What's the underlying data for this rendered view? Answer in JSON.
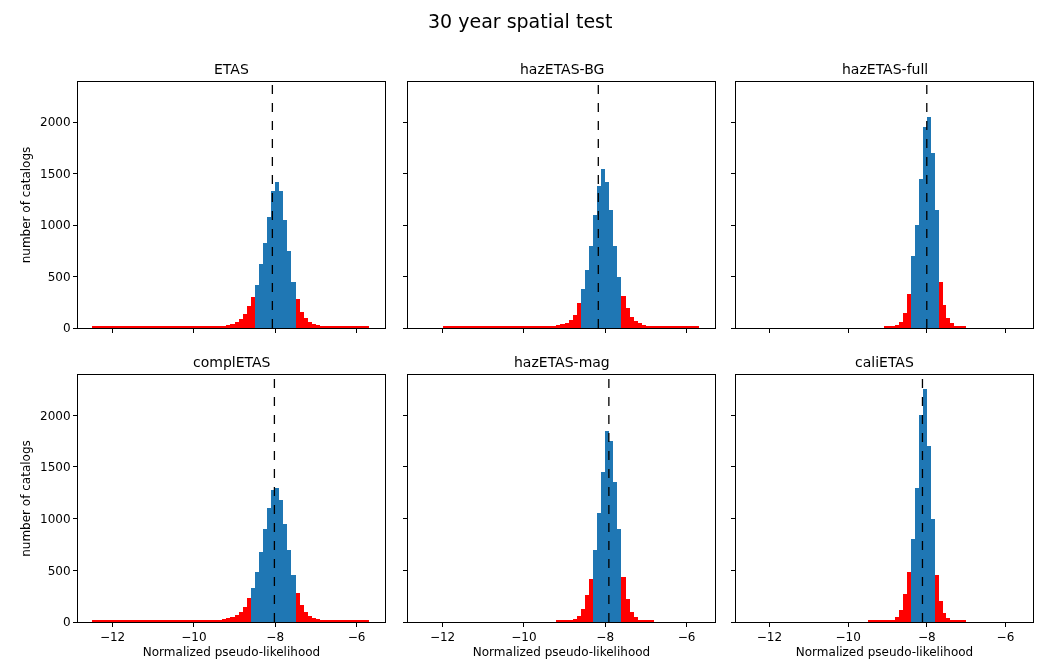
{
  "chart_data": [
    {
      "type": "histogram",
      "title": "ETAS",
      "ylabel": "number of catalogs",
      "annotations": [
        "30 year spatial test"
      ],
      "tick_labels": "y",
      "bins": [
        -12.5,
        -12,
        -11.5,
        -11,
        -10.5,
        -10,
        -9.5,
        -9.4,
        -9.3,
        -9.2,
        -9.1,
        -9.0,
        -8.9,
        -8.8,
        -8.7,
        -8.6,
        -8.5,
        -8.4,
        -8.3,
        -8.2,
        -8.1,
        -8.0,
        -7.9,
        -7.8,
        -7.7,
        -7.6,
        -7.5,
        -7.4,
        -7.3,
        -7.2,
        -7.1,
        -7.0,
        -6.9,
        -6.8,
        -6.7,
        -6.6,
        -6.5,
        -6.1,
        -5.7
      ],
      "values": [
        10,
        10,
        10,
        10,
        10,
        10,
        10,
        20,
        20,
        30,
        40,
        60,
        90,
        140,
        210,
        300,
        420,
        620,
        830,
        1080,
        1330,
        1420,
        1330,
        1050,
        750,
        450,
        280,
        160,
        100,
        60,
        40,
        30,
        20,
        10,
        10,
        10,
        10,
        10
      ],
      "colors": [
        "#ff0000",
        "#ff0000",
        "#ff0000",
        "#ff0000",
        "#ff0000",
        "#ff0000",
        "#ff0000",
        "#ff0000",
        "#ff0000",
        "#ff0000",
        "#ff0000",
        "#ff0000",
        "#ff0000",
        "#ff0000",
        "#ff0000",
        "#ff0000",
        "#1f77b4",
        "#1f77b4",
        "#1f77b4",
        "#1f77b4",
        "#1f77b4",
        "#1f77b4",
        "#1f77b4",
        "#1f77b4",
        "#1f77b4",
        "#1f77b4",
        "#ff0000",
        "#ff0000",
        "#ff0000",
        "#ff0000",
        "#ff0000",
        "#ff0000",
        "#ff0000",
        "#ff0000",
        "#ff0000",
        "#ff0000",
        "#ff0000",
        "#ff0000"
      ],
      "xlim": [
        -12.85,
        -5.3
      ],
      "xticks": [
        {
          "value": -12,
          "label": null
        },
        {
          "value": -10,
          "label": null
        },
        {
          "value": -8,
          "label": null
        },
        {
          "value": -6,
          "label": null
        }
      ],
      "ylim": [
        0,
        2390
      ],
      "yticks": [
        0,
        500,
        1000,
        1500,
        2000
      ],
      "ref_lines": [
        {
          "axis": "x",
          "value": -8.07,
          "color": "#000000",
          "line_style": "dashed"
        }
      ]
    },
    {
      "type": "histogram",
      "title": "hazETAS-BG",
      "tick_labels": false,
      "bins": [
        -12,
        -11.5,
        -11,
        -10.5,
        -10,
        -9.5,
        -9.4,
        -9.3,
        -9.2,
        -9.1,
        -9.0,
        -8.9,
        -8.8,
        -8.7,
        -8.6,
        -8.5,
        -8.4,
        -8.3,
        -8.2,
        -8.1,
        -8.0,
        -7.9,
        -7.8,
        -7.7,
        -7.6,
        -7.5,
        -7.4,
        -7.3,
        -7.2,
        -7.1,
        -7.0,
        -6.9,
        -6.8,
        -6.7,
        -6.6,
        -6.5,
        -6.1,
        -5.7
      ],
      "values": [
        10,
        10,
        10,
        10,
        10,
        10,
        10,
        20,
        30,
        40,
        50,
        80,
        130,
        240,
        380,
        560,
        800,
        1100,
        1380,
        1540,
        1420,
        1150,
        800,
        500,
        310,
        190,
        110,
        70,
        50,
        30,
        20,
        10,
        10,
        10,
        10,
        10,
        10
      ],
      "colors": [
        "#ff0000",
        "#ff0000",
        "#ff0000",
        "#ff0000",
        "#ff0000",
        "#ff0000",
        "#ff0000",
        "#ff0000",
        "#ff0000",
        "#ff0000",
        "#ff0000",
        "#ff0000",
        "#ff0000",
        "#ff0000",
        "#1f77b4",
        "#1f77b4",
        "#1f77b4",
        "#1f77b4",
        "#1f77b4",
        "#1f77b4",
        "#1f77b4",
        "#1f77b4",
        "#1f77b4",
        "#1f77b4",
        "#ff0000",
        "#ff0000",
        "#ff0000",
        "#ff0000",
        "#ff0000",
        "#ff0000",
        "#ff0000",
        "#ff0000",
        "#ff0000",
        "#ff0000",
        "#ff0000",
        "#ff0000",
        "#ff0000"
      ],
      "xlim": [
        -12.85,
        -5.3
      ],
      "xticks": [
        {
          "value": -12,
          "label": null
        },
        {
          "value": -10,
          "label": null
        },
        {
          "value": -8,
          "label": null
        },
        {
          "value": -6,
          "label": null
        }
      ],
      "ylim": [
        0,
        2390
      ],
      "yticks": [
        {
          "value": 0,
          "label": null
        },
        {
          "value": 500,
          "label": null
        },
        {
          "value": 1000,
          "label": null
        },
        {
          "value": 1500,
          "label": null
        },
        {
          "value": 2000,
          "label": null
        }
      ],
      "ref_lines": [
        {
          "axis": "x",
          "value": -8.17,
          "color": "#000000",
          "line_style": "dashed"
        }
      ]
    },
    {
      "type": "histogram",
      "title": "hazETAS-full",
      "tick_labels": false,
      "bins": [
        -9.1,
        -9.0,
        -8.9,
        -8.8,
        -8.7,
        -8.6,
        -8.5,
        -8.4,
        -8.3,
        -8.2,
        -8.1,
        -8.0,
        -7.9,
        -7.8,
        -7.7,
        -7.6,
        -7.5,
        -7.4,
        -7.3,
        -7.2,
        -7.1,
        -7.0
      ],
      "values": [
        10,
        10,
        10,
        30,
        60,
        150,
        330,
        700,
        1000,
        1450,
        1950,
        2050,
        1700,
        1150,
        450,
        220,
        100,
        50,
        20,
        10,
        10
      ],
      "colors": [
        "#ff0000",
        "#ff0000",
        "#ff0000",
        "#ff0000",
        "#ff0000",
        "#ff0000",
        "#ff0000",
        "#1f77b4",
        "#1f77b4",
        "#1f77b4",
        "#1f77b4",
        "#1f77b4",
        "#1f77b4",
        "#1f77b4",
        "#ff0000",
        "#ff0000",
        "#ff0000",
        "#ff0000",
        "#ff0000",
        "#ff0000",
        "#ff0000"
      ],
      "xlim": [
        -12.85,
        -5.3
      ],
      "xticks": [
        {
          "value": -12,
          "label": null
        },
        {
          "value": -10,
          "label": null
        },
        {
          "value": -8,
          "label": null
        },
        {
          "value": -6,
          "label": null
        }
      ],
      "ylim": [
        0,
        2390
      ],
      "yticks": [
        {
          "value": 0,
          "label": null
        },
        {
          "value": 500,
          "label": null
        },
        {
          "value": 1000,
          "label": null
        },
        {
          "value": 1500,
          "label": null
        },
        {
          "value": 2000,
          "label": null
        }
      ],
      "ref_lines": [
        {
          "axis": "x",
          "value": -8.0,
          "color": "#000000",
          "line_style": "dashed"
        }
      ]
    },
    {
      "type": "histogram",
      "title": "complETAS",
      "xlabel": "Normalized pseudo-likelihood",
      "ylabel": "number of catalogs",
      "bins": [
        -12.5,
        -12,
        -11.5,
        -11,
        -10.5,
        -10,
        -9.5,
        -9.4,
        -9.3,
        -9.2,
        -9.1,
        -9.0,
        -8.9,
        -8.8,
        -8.7,
        -8.6,
        -8.5,
        -8.4,
        -8.3,
        -8.2,
        -8.1,
        -8.0,
        -7.9,
        -7.8,
        -7.7,
        -7.6,
        -7.5,
        -7.4,
        -7.3,
        -7.2,
        -7.1,
        -7.0,
        -6.9,
        -6.8,
        -6.7,
        -6.6,
        -6.5,
        -6.1,
        -5.7
      ],
      "values": [
        10,
        10,
        10,
        10,
        10,
        10,
        10,
        20,
        30,
        40,
        50,
        70,
        100,
        150,
        230,
        330,
        480,
        680,
        900,
        1100,
        1280,
        1300,
        1180,
        950,
        700,
        450,
        280,
        160,
        100,
        60,
        40,
        30,
        20,
        10,
        10,
        10,
        10,
        10
      ],
      "colors": [
        "#ff0000",
        "#ff0000",
        "#ff0000",
        "#ff0000",
        "#ff0000",
        "#ff0000",
        "#ff0000",
        "#ff0000",
        "#ff0000",
        "#ff0000",
        "#ff0000",
        "#ff0000",
        "#ff0000",
        "#ff0000",
        "#ff0000",
        "#1f77b4",
        "#1f77b4",
        "#1f77b4",
        "#1f77b4",
        "#1f77b4",
        "#1f77b4",
        "#1f77b4",
        "#1f77b4",
        "#1f77b4",
        "#1f77b4",
        "#1f77b4",
        "#ff0000",
        "#ff0000",
        "#ff0000",
        "#ff0000",
        "#ff0000",
        "#ff0000",
        "#ff0000",
        "#ff0000",
        "#ff0000",
        "#ff0000",
        "#ff0000",
        "#ff0000"
      ],
      "xlim": [
        -12.85,
        -5.3
      ],
      "xticks": [
        {
          "value": -12,
          "label": "−12"
        },
        {
          "value": -10,
          "label": "−10"
        },
        {
          "value": -8,
          "label": "−8"
        },
        {
          "value": -6,
          "label": "−6"
        }
      ],
      "ylim": [
        0,
        2390
      ],
      "yticks": [
        0,
        500,
        1000,
        1500,
        2000
      ],
      "ref_lines": [
        {
          "axis": "x",
          "value": -8.02,
          "color": "#000000",
          "line_style": "dashed"
        }
      ]
    },
    {
      "type": "histogram",
      "title": "hazETAS-mag",
      "xlabel": "Normalized pseudo-likelihood",
      "tick_labels": "x",
      "bins": [
        -9.2,
        -9.1,
        -9.0,
        -8.9,
        -8.8,
        -8.7,
        -8.6,
        -8.5,
        -8.4,
        -8.3,
        -8.2,
        -8.1,
        -8.0,
        -7.9,
        -7.8,
        -7.7,
        -7.6,
        -7.5,
        -7.4,
        -7.3,
        -7.2,
        -7.1,
        -7.0,
        -6.9,
        -6.8
      ],
      "values": [
        10,
        10,
        10,
        20,
        30,
        60,
        130,
        260,
        420,
        700,
        1050,
        1450,
        1850,
        1750,
        1350,
        900,
        440,
        220,
        100,
        50,
        20,
        10,
        10,
        10
      ],
      "colors": [
        "#ff0000",
        "#ff0000",
        "#ff0000",
        "#ff0000",
        "#ff0000",
        "#ff0000",
        "#ff0000",
        "#ff0000",
        "#ff0000",
        "#1f77b4",
        "#1f77b4",
        "#1f77b4",
        "#1f77b4",
        "#1f77b4",
        "#1f77b4",
        "#1f77b4",
        "#ff0000",
        "#ff0000",
        "#ff0000",
        "#ff0000",
        "#ff0000",
        "#ff0000",
        "#ff0000",
        "#ff0000"
      ],
      "xlim": [
        -12.85,
        -5.3
      ],
      "xticks": [
        {
          "value": -12,
          "label": "−12"
        },
        {
          "value": -10,
          "label": "−10"
        },
        {
          "value": -8,
          "label": "−8"
        },
        {
          "value": -6,
          "label": "−6"
        }
      ],
      "ylim": [
        0,
        2390
      ],
      "yticks": [
        {
          "value": 0,
          "label": null
        },
        {
          "value": 500,
          "label": null
        },
        {
          "value": 1000,
          "label": null
        },
        {
          "value": 1500,
          "label": null
        },
        {
          "value": 2000,
          "label": null
        }
      ],
      "ref_lines": [
        {
          "axis": "x",
          "value": -7.91,
          "color": "#000000",
          "line_style": "dashed"
        }
      ]
    },
    {
      "type": "histogram",
      "title": "caliETAS",
      "xlabel": "Normalized pseudo-likelihood",
      "tick_labels": "x",
      "bins": [
        -9.5,
        -9.4,
        -9.3,
        -9.2,
        -9.1,
        -9.0,
        -8.9,
        -8.8,
        -8.7,
        -8.6,
        -8.5,
        -8.4,
        -8.3,
        -8.2,
        -8.1,
        -8.0,
        -7.9,
        -7.8,
        -7.7,
        -7.6,
        -7.5,
        -7.4,
        -7.3,
        -7.2,
        -7.1,
        -7.0
      ],
      "values": [
        10,
        10,
        10,
        10,
        10,
        10,
        20,
        50,
        120,
        270,
        480,
        800,
        1300,
        2000,
        2250,
        1700,
        1000,
        450,
        200,
        90,
        40,
        20,
        10,
        10,
        10
      ],
      "colors": [
        "#ff0000",
        "#ff0000",
        "#ff0000",
        "#ff0000",
        "#ff0000",
        "#ff0000",
        "#ff0000",
        "#ff0000",
        "#ff0000",
        "#ff0000",
        "#ff0000",
        "#1f77b4",
        "#1f77b4",
        "#1f77b4",
        "#1f77b4",
        "#1f77b4",
        "#1f77b4",
        "#ff0000",
        "#ff0000",
        "#ff0000",
        "#ff0000",
        "#ff0000",
        "#ff0000",
        "#ff0000",
        "#ff0000"
      ],
      "xlim": [
        -12.85,
        -5.3
      ],
      "xticks": [
        {
          "value": -12,
          "label": "−12"
        },
        {
          "value": -10,
          "label": "−10"
        },
        {
          "value": -8,
          "label": "−8"
        },
        {
          "value": -6,
          "label": "−6"
        }
      ],
      "ylim": [
        0,
        2390
      ],
      "yticks": [
        {
          "value": 0,
          "label": null
        },
        {
          "value": 500,
          "label": null
        },
        {
          "value": 1000,
          "label": null
        },
        {
          "value": 1500,
          "label": null
        },
        {
          "value": 2000,
          "label": null
        }
      ],
      "ref_lines": [
        {
          "axis": "x",
          "value": -8.11,
          "color": "#000000",
          "line_style": "dashed"
        }
      ]
    }
  ]
}
